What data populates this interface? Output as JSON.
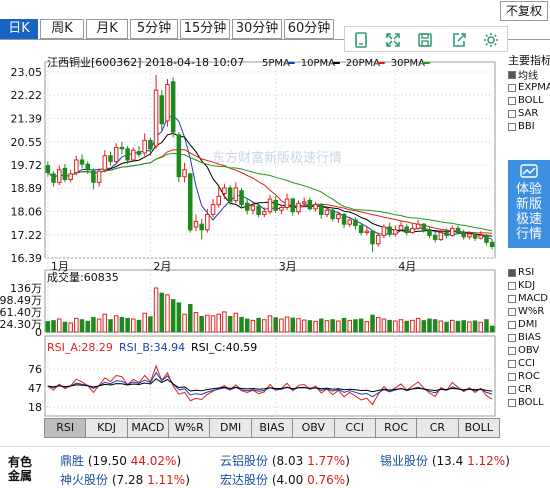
{
  "period_tabs": [
    {
      "label": "日K",
      "active": true
    },
    {
      "label": "周K",
      "active": false
    },
    {
      "label": "月K",
      "active": false
    },
    {
      "label": "5分钟",
      "active": false
    },
    {
      "label": "15分钟",
      "active": false
    },
    {
      "label": "30分钟",
      "active": false
    },
    {
      "label": "60分钟",
      "active": false
    }
  ],
  "fuquan_label": "不复权",
  "toolbar_icons": [
    "tablet-icon",
    "fullscreen-icon",
    "save-icon",
    "share-icon",
    "settings-icon"
  ],
  "chart": {
    "title": "江西铜业[600362] 2018-04-18 10:07",
    "ma_legend": [
      {
        "label": "5PMA",
        "color": "#1a3fb0"
      },
      {
        "label": "10PMA",
        "color": "#000000"
      },
      {
        "label": "20PMA",
        "color": "#e02020"
      },
      {
        "label": "30PMA",
        "color": "#1e9a1e"
      }
    ],
    "watermark": "东方财富新版极速行情",
    "price_ticks": [
      "23.05",
      "22.22",
      "21.39",
      "20.55",
      "19.72",
      "18.89",
      "18.06",
      "17.22",
      "16.39"
    ],
    "month_labels": [
      "1月",
      "2月",
      "3月",
      "4月"
    ],
    "volume_title": "成交量:60835",
    "volume_ticks": [
      "136万",
      "98.49万",
      "61.40万",
      "24.30万",
      "0"
    ],
    "rsi_title": {
      "a": "RSI_A:28.29",
      "b": "RSI_B:34.94",
      "c": "RSI_C:40.59"
    },
    "rsi_colors": {
      "a": "#e02020",
      "b": "#1a3fb0",
      "c": "#000000"
    },
    "rsi_ticks": [
      "76",
      "47",
      "18"
    ]
  },
  "right_panel": {
    "title": "主要指标",
    "main_items": [
      {
        "label": "均线",
        "checked": true
      },
      {
        "label": "EXPMA",
        "checked": false
      },
      {
        "label": "BOLL",
        "checked": false
      },
      {
        "label": "SAR",
        "checked": false
      },
      {
        "label": "BBI",
        "checked": false
      }
    ],
    "upgrade_text": "体验新版极速行情",
    "sub_items": [
      {
        "label": "RSI",
        "checked": true
      },
      {
        "label": "KDJ",
        "checked": false
      },
      {
        "label": "MACD",
        "checked": false
      },
      {
        "label": "W%R",
        "checked": false
      },
      {
        "label": "DMI",
        "checked": false
      },
      {
        "label": "BIAS",
        "checked": false
      },
      {
        "label": "OBV",
        "checked": false
      },
      {
        "label": "CCI",
        "checked": false
      },
      {
        "label": "ROC",
        "checked": false
      },
      {
        "label": "CR",
        "checked": false
      },
      {
        "label": "BOLL",
        "checked": false
      }
    ]
  },
  "indicator_tabs": [
    {
      "label": "RSI",
      "active": true
    },
    {
      "label": "KDJ",
      "active": false
    },
    {
      "label": "MACD",
      "active": false
    },
    {
      "label": "W%R",
      "active": false
    },
    {
      "label": "DMI",
      "active": false
    },
    {
      "label": "BIAS",
      "active": false
    },
    {
      "label": "OBV",
      "active": false
    },
    {
      "label": "CCI",
      "active": false
    },
    {
      "label": "ROC",
      "active": false
    },
    {
      "label": "CR",
      "active": false
    },
    {
      "label": "BOLL",
      "active": false
    }
  ],
  "footer": {
    "sector": "有色金属",
    "stocks": [
      {
        "name": "鼎胜",
        "price": "19.50",
        "pct": "44.02%"
      },
      {
        "name": "云铝股份",
        "price": "8.03",
        "pct": "1.77%"
      },
      {
        "name": "锡业股份",
        "price": "13.4",
        "pct": "1.12%"
      },
      {
        "name": "神火股份",
        "price": "7.28",
        "pct": "1.11%"
      },
      {
        "name": "宏达股份",
        "price": "4.00",
        "pct": "0.76%"
      }
    ]
  },
  "chart_data": {
    "type": "candlestick",
    "title": "江西铜业[600362] 2018-04-18 10:07",
    "x_month_labels": [
      "1月",
      "2月",
      "3月",
      "4月"
    ],
    "price_ylim": [
      16.39,
      23.05
    ],
    "volume_ylim": [
      0,
      136
    ],
    "volume_unit": "万",
    "rsi_ylim": [
      0,
      100
    ],
    "candles": [
      {
        "o": 19.7,
        "c": 19.45,
        "h": 19.85,
        "l": 19.3,
        "v": 32
      },
      {
        "o": 19.4,
        "c": 19.1,
        "h": 19.5,
        "l": 18.95,
        "v": 35
      },
      {
        "o": 19.1,
        "c": 19.55,
        "h": 19.7,
        "l": 19.0,
        "v": 40
      },
      {
        "o": 19.6,
        "c": 19.2,
        "h": 19.75,
        "l": 19.1,
        "v": 30
      },
      {
        "o": 19.2,
        "c": 19.4,
        "h": 19.55,
        "l": 19.1,
        "v": 28
      },
      {
        "o": 19.45,
        "c": 19.9,
        "h": 20.05,
        "l": 19.35,
        "v": 42
      },
      {
        "o": 19.9,
        "c": 19.75,
        "h": 20.1,
        "l": 19.6,
        "v": 38
      },
      {
        "o": 19.75,
        "c": 19.55,
        "h": 19.85,
        "l": 19.4,
        "v": 33
      },
      {
        "o": 19.5,
        "c": 19.1,
        "h": 19.6,
        "l": 18.85,
        "v": 45
      },
      {
        "o": 19.1,
        "c": 19.5,
        "h": 19.6,
        "l": 18.95,
        "v": 40
      },
      {
        "o": 19.55,
        "c": 20.05,
        "h": 20.25,
        "l": 19.45,
        "v": 55
      },
      {
        "o": 20.05,
        "c": 19.85,
        "h": 20.2,
        "l": 19.7,
        "v": 38
      },
      {
        "o": 19.85,
        "c": 20.35,
        "h": 20.5,
        "l": 19.75,
        "v": 50
      },
      {
        "o": 20.35,
        "c": 20.3,
        "h": 20.55,
        "l": 20.1,
        "v": 45
      },
      {
        "o": 20.3,
        "c": 19.9,
        "h": 20.4,
        "l": 19.75,
        "v": 42
      },
      {
        "o": 19.9,
        "c": 20.25,
        "h": 20.35,
        "l": 19.85,
        "v": 40
      },
      {
        "o": 20.2,
        "c": 20.1,
        "h": 20.4,
        "l": 20.0,
        "v": 36
      },
      {
        "o": 20.15,
        "c": 20.6,
        "h": 20.85,
        "l": 20.05,
        "v": 58
      },
      {
        "o": 20.6,
        "c": 20.3,
        "h": 20.7,
        "l": 20.05,
        "v": 47
      },
      {
        "o": 20.4,
        "c": 22.4,
        "h": 22.95,
        "l": 20.3,
        "v": 136
      },
      {
        "o": 22.2,
        "c": 21.2,
        "h": 22.4,
        "l": 20.95,
        "v": 120
      },
      {
        "o": 21.3,
        "c": 22.6,
        "h": 22.8,
        "l": 21.1,
        "v": 115
      },
      {
        "o": 22.7,
        "c": 20.9,
        "h": 22.85,
        "l": 20.7,
        "v": 100
      },
      {
        "o": 20.8,
        "c": 19.3,
        "h": 20.9,
        "l": 19.1,
        "v": 90
      },
      {
        "o": 19.3,
        "c": 19.55,
        "h": 19.8,
        "l": 19.1,
        "v": 55
      },
      {
        "o": 19.4,
        "c": 17.4,
        "h": 19.45,
        "l": 17.3,
        "v": 85
      },
      {
        "o": 17.5,
        "c": 17.7,
        "h": 17.95,
        "l": 17.35,
        "v": 60
      },
      {
        "o": 17.6,
        "c": 17.4,
        "h": 17.8,
        "l": 17.05,
        "v": 48
      },
      {
        "o": 17.4,
        "c": 17.95,
        "h": 18.15,
        "l": 17.3,
        "v": 52
      },
      {
        "o": 17.95,
        "c": 18.3,
        "h": 18.5,
        "l": 17.85,
        "v": 50
      },
      {
        "o": 18.3,
        "c": 18.6,
        "h": 18.95,
        "l": 18.2,
        "v": 55
      },
      {
        "o": 18.7,
        "c": 18.9,
        "h": 19.05,
        "l": 18.5,
        "v": 62
      },
      {
        "o": 18.9,
        "c": 18.4,
        "h": 19.0,
        "l": 18.3,
        "v": 48
      },
      {
        "o": 18.45,
        "c": 18.9,
        "h": 19.1,
        "l": 18.35,
        "v": 58
      },
      {
        "o": 18.8,
        "c": 18.3,
        "h": 18.9,
        "l": 18.15,
        "v": 45
      },
      {
        "o": 18.35,
        "c": 18.1,
        "h": 18.5,
        "l": 17.95,
        "v": 40
      },
      {
        "o": 18.1,
        "c": 18.25,
        "h": 18.4,
        "l": 17.95,
        "v": 36
      },
      {
        "o": 18.25,
        "c": 17.95,
        "h": 18.35,
        "l": 17.85,
        "v": 42
      },
      {
        "o": 17.95,
        "c": 18.05,
        "h": 18.2,
        "l": 17.85,
        "v": 38
      },
      {
        "o": 18.05,
        "c": 18.5,
        "h": 18.65,
        "l": 17.95,
        "v": 50
      },
      {
        "o": 18.45,
        "c": 18.1,
        "h": 18.6,
        "l": 18.0,
        "v": 44
      },
      {
        "o": 18.1,
        "c": 18.2,
        "h": 18.3,
        "l": 17.95,
        "v": 40
      },
      {
        "o": 18.2,
        "c": 18.5,
        "h": 18.7,
        "l": 18.1,
        "v": 46
      },
      {
        "o": 18.5,
        "c": 18.05,
        "h": 18.55,
        "l": 17.9,
        "v": 43
      },
      {
        "o": 18.05,
        "c": 18.35,
        "h": 18.45,
        "l": 17.95,
        "v": 41
      },
      {
        "o": 18.35,
        "c": 18.4,
        "h": 18.55,
        "l": 18.25,
        "v": 37
      },
      {
        "o": 18.45,
        "c": 18.15,
        "h": 18.55,
        "l": 18.1,
        "v": 35
      },
      {
        "o": 18.15,
        "c": 18.3,
        "h": 18.4,
        "l": 18.05,
        "v": 33
      },
      {
        "o": 18.3,
        "c": 17.95,
        "h": 18.35,
        "l": 17.8,
        "v": 40
      },
      {
        "o": 17.95,
        "c": 18.1,
        "h": 18.25,
        "l": 17.85,
        "v": 35
      },
      {
        "o": 18.1,
        "c": 17.8,
        "h": 18.15,
        "l": 17.7,
        "v": 38
      },
      {
        "o": 17.8,
        "c": 17.95,
        "h": 18.05,
        "l": 17.65,
        "v": 34
      },
      {
        "o": 17.95,
        "c": 17.6,
        "h": 18.0,
        "l": 17.45,
        "v": 42
      },
      {
        "o": 17.6,
        "c": 17.75,
        "h": 17.85,
        "l": 17.5,
        "v": 36
      },
      {
        "o": 17.75,
        "c": 17.55,
        "h": 17.85,
        "l": 17.4,
        "v": 38
      },
      {
        "o": 17.55,
        "c": 17.3,
        "h": 17.65,
        "l": 17.2,
        "v": 40
      },
      {
        "o": 17.3,
        "c": 17.35,
        "h": 17.5,
        "l": 17.2,
        "v": 32
      },
      {
        "o": 17.35,
        "c": 16.9,
        "h": 17.4,
        "l": 16.6,
        "v": 52
      },
      {
        "o": 16.9,
        "c": 17.2,
        "h": 17.3,
        "l": 16.8,
        "v": 45
      },
      {
        "o": 17.2,
        "c": 17.5,
        "h": 17.6,
        "l": 17.1,
        "v": 40
      },
      {
        "o": 17.5,
        "c": 17.25,
        "h": 17.65,
        "l": 17.15,
        "v": 36
      },
      {
        "o": 17.25,
        "c": 17.4,
        "h": 17.55,
        "l": 17.15,
        "v": 34
      },
      {
        "o": 17.4,
        "c": 17.55,
        "h": 17.7,
        "l": 17.35,
        "v": 38
      },
      {
        "o": 17.5,
        "c": 17.3,
        "h": 17.6,
        "l": 17.2,
        "v": 33
      },
      {
        "o": 17.3,
        "c": 17.45,
        "h": 17.6,
        "l": 17.25,
        "v": 36
      },
      {
        "o": 17.45,
        "c": 17.6,
        "h": 17.75,
        "l": 17.4,
        "v": 42
      },
      {
        "o": 17.6,
        "c": 17.4,
        "h": 17.65,
        "l": 17.3,
        "v": 35
      },
      {
        "o": 17.4,
        "c": 17.2,
        "h": 17.5,
        "l": 17.1,
        "v": 40
      },
      {
        "o": 17.2,
        "c": 17.05,
        "h": 17.35,
        "l": 16.95,
        "v": 38
      },
      {
        "o": 17.05,
        "c": 17.3,
        "h": 17.4,
        "l": 17.0,
        "v": 34
      },
      {
        "o": 17.3,
        "c": 17.2,
        "h": 17.45,
        "l": 17.1,
        "v": 30
      },
      {
        "o": 17.2,
        "c": 17.45,
        "h": 17.55,
        "l": 17.15,
        "v": 36
      },
      {
        "o": 17.45,
        "c": 17.3,
        "h": 17.55,
        "l": 17.25,
        "v": 33
      },
      {
        "o": 17.3,
        "c": 17.15,
        "h": 17.4,
        "l": 17.05,
        "v": 35
      },
      {
        "o": 17.15,
        "c": 17.25,
        "h": 17.35,
        "l": 17.05,
        "v": 31
      },
      {
        "o": 17.25,
        "c": 17.1,
        "h": 17.3,
        "l": 17.0,
        "v": 34
      },
      {
        "o": 17.1,
        "c": 17.2,
        "h": 17.35,
        "l": 17.05,
        "v": 30
      },
      {
        "o": 17.2,
        "c": 16.95,
        "h": 17.25,
        "l": 16.85,
        "v": 38
      },
      {
        "o": 16.95,
        "c": 16.8,
        "h": 17.05,
        "l": 16.7,
        "v": 18
      }
    ]
  }
}
